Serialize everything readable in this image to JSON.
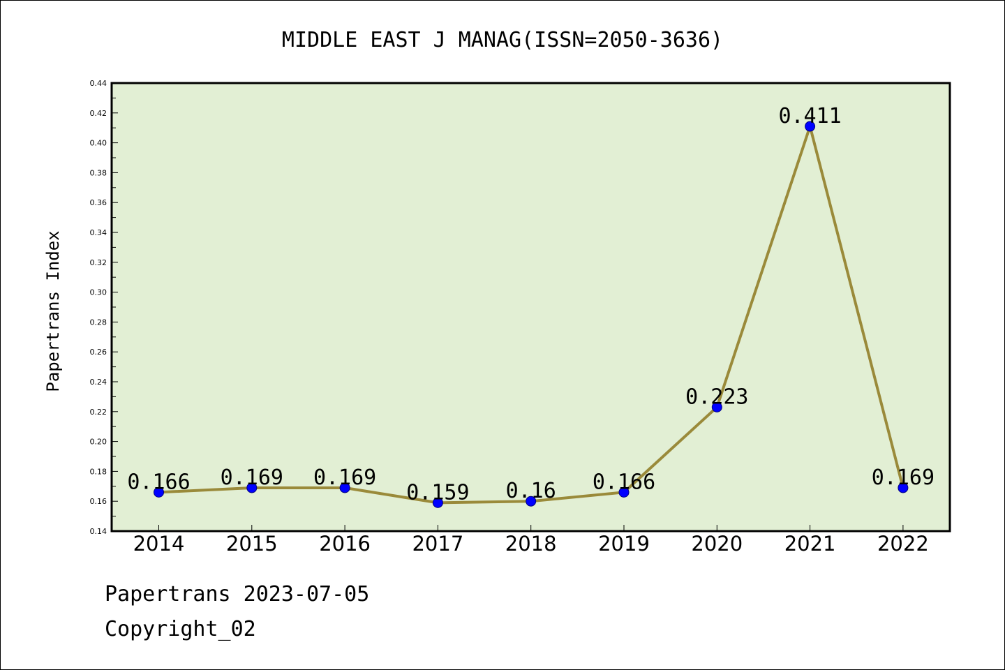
{
  "chart_data": {
    "type": "line",
    "title": "MIDDLE EAST J MANAG(ISSN=2050-3636)",
    "ylabel": "Papertrans Index",
    "xlabel": "",
    "categories": [
      "2014",
      "2015",
      "2016",
      "2017",
      "2018",
      "2019",
      "2020",
      "2021",
      "2022"
    ],
    "values": [
      0.166,
      0.169,
      0.169,
      0.159,
      0.16,
      0.166,
      0.223,
      0.411,
      0.169
    ],
    "data_labels": [
      "0.166",
      "0.169",
      "0.169",
      "0.159",
      "0.16",
      "0.166",
      "0.223",
      "0.411",
      "0.169"
    ],
    "ylim": [
      0.14,
      0.44
    ],
    "yticks": [
      "0.14",
      "0.16",
      "0.18",
      "0.20",
      "0.22",
      "0.24",
      "0.26",
      "0.28",
      "0.30",
      "0.32",
      "0.34",
      "0.36",
      "0.38",
      "0.40",
      "0.42",
      "0.44"
    ],
    "grid": false,
    "legend": "none",
    "colors": {
      "plot_background": "#e2efd4",
      "line": "#9a8a3a",
      "marker": "#0000ff",
      "axis": "#000000"
    }
  },
  "footer": {
    "line1": "Papertrans 2023-07-05",
    "line2": "Copyright_02"
  }
}
